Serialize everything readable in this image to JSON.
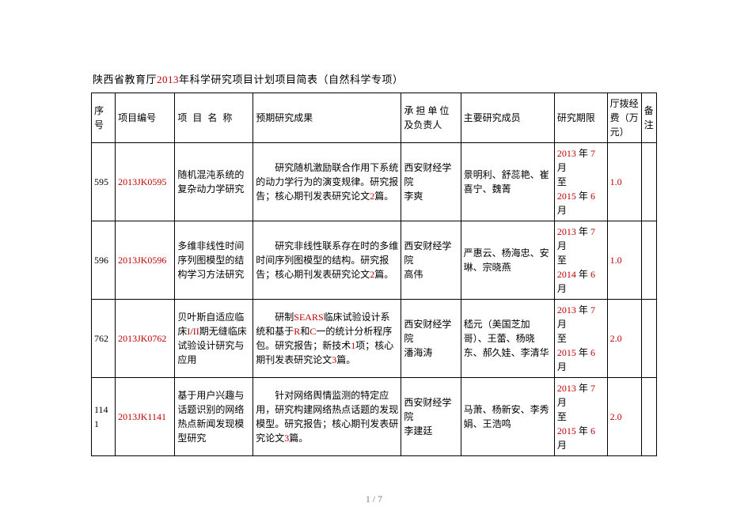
{
  "title_prefix": "陕西省教育厅",
  "title_year": "2013",
  "title_suffix": "年科学研究项目计划项目简表（自然科学专项）",
  "page_number": "1 / 7",
  "columns": {
    "seq": "序号",
    "id": "项目编号",
    "name": "项 目 名 称",
    "result": "预期研究成果",
    "unit": "承 担 单 位 及负责人",
    "member": "主要研究成员",
    "period": "研究期限",
    "fund": "厅拨经费（万元）",
    "note": "备注"
  },
  "rows": [
    {
      "seq": "595",
      "id": "2013JK0595",
      "name": "随机混沌系统的复杂动力学研究",
      "result_pre": "研究随机激励联合作用下系统的动力学行为的演变规律。研究报告；核心期刊发表研究论文",
      "result_num": "2",
      "result_post": "篇。",
      "unit_inst": "西安财经学院",
      "unit_leader": "李爽",
      "member": "景明利、舒蕊艳、崔喜宁、魏菁",
      "period_from_y": "2013",
      "period_from_m": "7",
      "period_to_y": "2015",
      "period_to_m": "6",
      "fund": "1.0",
      "note": ""
    },
    {
      "seq": "596",
      "id": "2013JK0596",
      "name": "多维非线性时间序列图模型的结构学习方法研究",
      "result_pre": "研究非线性联系存在时的多维时间序列图模型的结构。研究报告；核心期刊发表研究论文",
      "result_num": "2",
      "result_post": "篇。",
      "unit_inst": "西安财经学院",
      "unit_leader": "高伟",
      "member": "严惠云、杨海忠、安琳、宗晓燕",
      "period_from_y": "2013",
      "period_from_m": "7",
      "period_to_y": "2014",
      "period_to_m": "6",
      "fund": "1.0",
      "note": ""
    },
    {
      "seq": "762",
      "id": "2013JK0762",
      "name_pre": "贝叶斯自适应临床",
      "name_red1": "I",
      "name_mid1": "/",
      "name_red2": "II",
      "name_post": "期无缝临床试验设计研究与应用",
      "result_a": "研制",
      "result_b": "SEARS",
      "result_c": "临床试验设计系统和基于",
      "result_d": "R",
      "result_e": "和",
      "result_f": "C",
      "result_g": "一的统计分析程序包。研究报告；新技术",
      "result_h": "1",
      "result_i": "项；核心期刊发表研究论文",
      "result_j": "3",
      "result_k": "篇。",
      "unit_inst": "西安财经学院",
      "unit_leader": "潘海涛",
      "member": "嵇元（美国芝加哥）、王蕾、杨晓东、郝久娃、李清华",
      "period_from_y": "2013",
      "period_from_m": "7",
      "period_to_y": "2015",
      "period_to_m": "6",
      "fund": "2.0",
      "note": ""
    },
    {
      "seq": "1141",
      "id": "2013JK1141",
      "name": "基于用户兴趣与话题识别的网络热点新闻发现模型研究",
      "result_pre": "针对网络舆情监测的特定应用，研究构建网络热点话题的发现模型。研究报告；核心期刊发表研究论文",
      "result_num": "3",
      "result_post": "篇。",
      "unit_inst": "西安财经学院",
      "unit_leader": "李建廷",
      "member": "马萧、杨新安、李秀娟、王浩鸣",
      "period_from_y": "2013",
      "period_from_m": "7",
      "period_to_y": "2015",
      "period_to_m": "6",
      "fund": "2.0",
      "note": ""
    }
  ]
}
